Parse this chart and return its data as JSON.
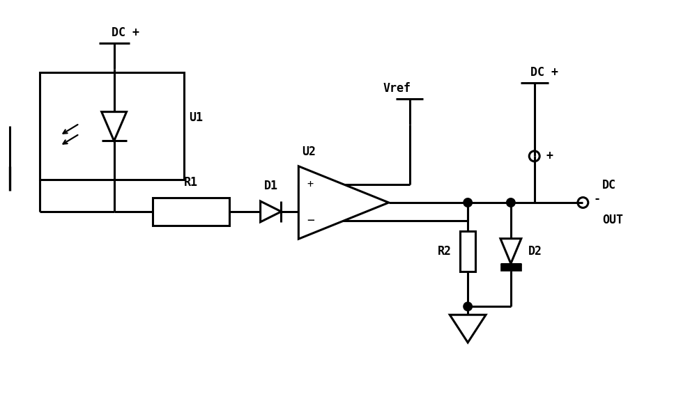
{
  "background_color": "#ffffff",
  "line_color": "#000000",
  "lw": 2.2,
  "fig_width": 10.0,
  "fig_height": 5.76,
  "labels": {
    "DC_plus_left": "DC +",
    "U1": "U1",
    "R1": "R1",
    "D1": "D1",
    "U2": "U2",
    "Vref": "Vref",
    "DC_plus_right": "DC +",
    "DC_OUT_line1": "DC",
    "DC_OUT_line2": "OUT",
    "R2": "R2",
    "D2": "D2",
    "plus_sign": "+",
    "minus_sign": "-"
  }
}
